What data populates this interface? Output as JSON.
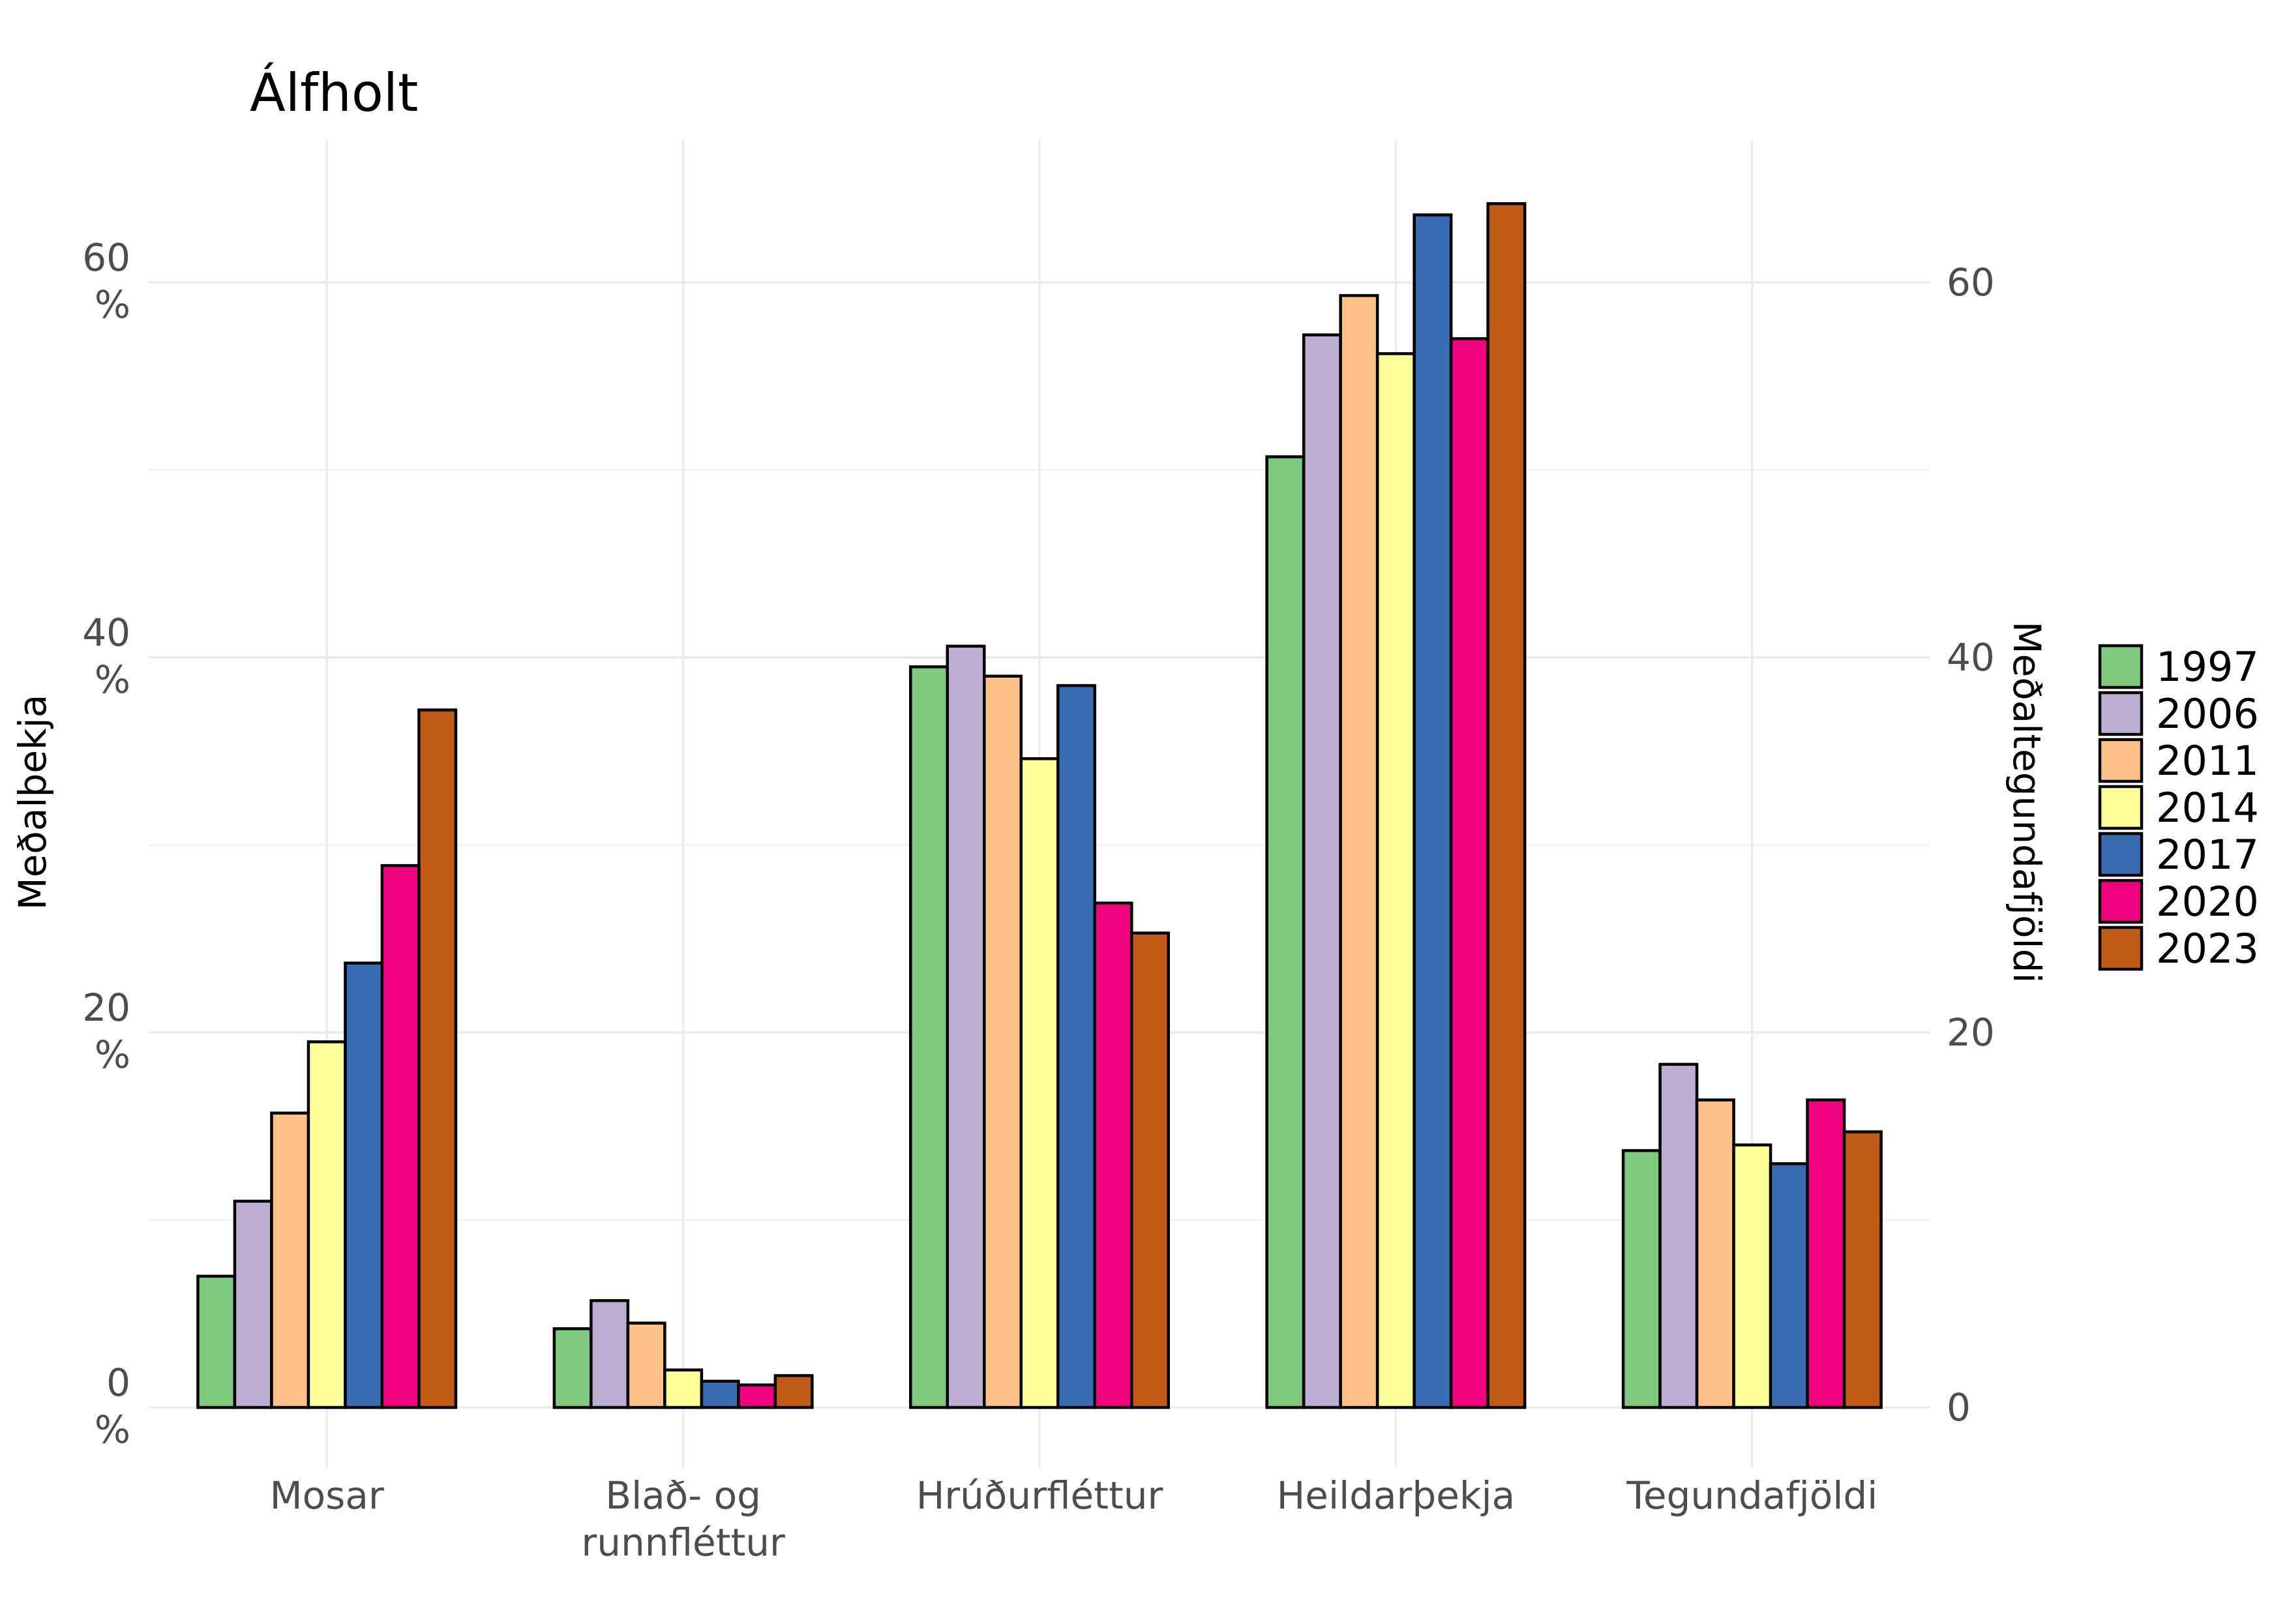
{
  "chart_data": {
    "type": "bar",
    "title": "Álfholt",
    "ylabel": "Meðalþekja",
    "ylabel_right": "Meðaltegundafjöldi",
    "xlabel": "",
    "categories": [
      "Mosar",
      "Blað- og runnfléttur",
      "Hrúðurfléttur",
      "Heildarþekja",
      "Tegundafjöldi"
    ],
    "category_lines": [
      [
        "Mosar"
      ],
      [
        "Blað- og",
        "runnfléttur"
      ],
      [
        "Hrúðurfléttur"
      ],
      [
        "Heildarþekja"
      ],
      [
        "Tegundafjöldi"
      ]
    ],
    "ylim": [
      -2.2,
      67.3
    ],
    "y_ticks_left": [
      {
        "value": 0,
        "lines": [
          "0",
          "%"
        ]
      },
      {
        "value": 20,
        "lines": [
          "20",
          "%"
        ]
      },
      {
        "value": 40,
        "lines": [
          "40",
          "%"
        ]
      },
      {
        "value": 60,
        "lines": [
          "60",
          "%"
        ]
      }
    ],
    "y_ticks_right": [
      0,
      20,
      40,
      60
    ],
    "minor_gridlines": [
      10,
      30,
      50
    ],
    "grid": true,
    "legend_position": "right",
    "series": [
      {
        "name": "1997",
        "color": "#7fc97f",
        "values": [
          7.0,
          4.2,
          39.5,
          50.7,
          13.7
        ]
      },
      {
        "name": "2006",
        "color": "#beaed4",
        "values": [
          11.0,
          5.7,
          40.6,
          57.2,
          18.3
        ]
      },
      {
        "name": "2011",
        "color": "#fdc086",
        "values": [
          15.7,
          4.5,
          39.0,
          59.3,
          16.4
        ]
      },
      {
        "name": "2014",
        "color": "#ffff99",
        "values": [
          19.5,
          2.0,
          34.6,
          56.2,
          14.0
        ]
      },
      {
        "name": "2017",
        "color": "#386cb0",
        "values": [
          23.7,
          1.4,
          38.5,
          63.6,
          13.0
        ]
      },
      {
        "name": "2020",
        "color": "#f0027f",
        "values": [
          28.9,
          1.2,
          26.9,
          57.0,
          16.4
        ]
      },
      {
        "name": "2023",
        "color": "#bf5b17",
        "values": [
          37.2,
          1.7,
          25.3,
          64.2,
          14.7
        ]
      }
    ]
  }
}
